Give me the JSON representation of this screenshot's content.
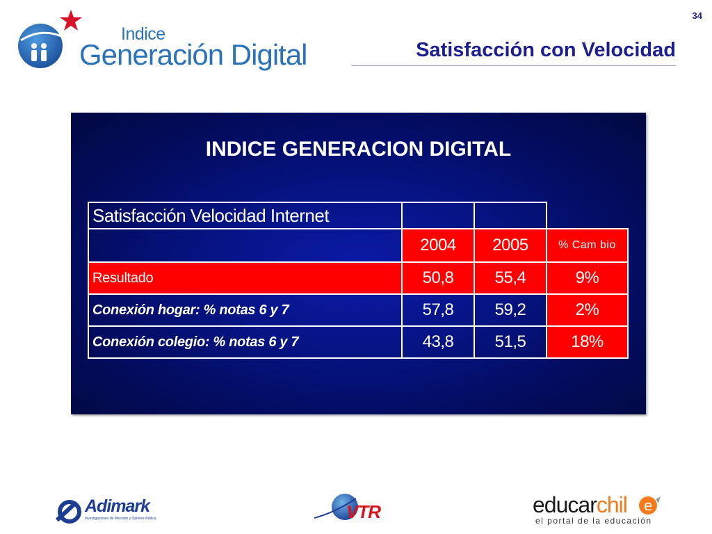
{
  "page_number": "34",
  "brand": {
    "indice": "Indice",
    "main": "Generación Digital",
    "star_color": "#d8102a",
    "blue_color": "#2a73b9"
  },
  "slide_title": "Satisfacción con Velocidad",
  "panel": {
    "title": "INDICE GENERACION DIGITAL",
    "table": {
      "header_label": "Satisfacción Velocidad Internet",
      "years": [
        "2004",
        "2005"
      ],
      "change_label": "% Cam bio",
      "rows": [
        {
          "label": "Resultado",
          "v2004": "50,8",
          "v2005": "55,4",
          "change": "9%"
        },
        {
          "label": "Conexión hogar: % notas 6 y 7",
          "v2004": "57,8",
          "v2005": "59,2",
          "change": "2%"
        },
        {
          "label": "Conexión colegio: % notas 6 y 7",
          "v2004": "43,8",
          "v2005": "51,5",
          "change": "18%"
        }
      ]
    }
  },
  "footer": {
    "adimark": {
      "name": "Adimark",
      "subtitle": "Investigaciones de Mercado y Opinión Pública"
    },
    "vtr": {
      "name": "VTR"
    },
    "educarchile": {
      "part1": "educar",
      "part2": "chil",
      "tagline": "el portal de la educación"
    }
  }
}
